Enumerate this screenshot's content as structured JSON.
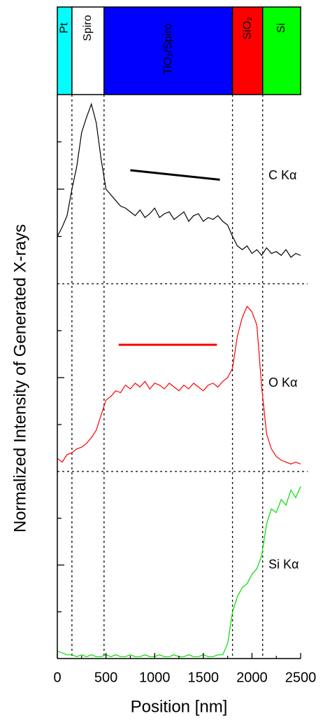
{
  "figure": {
    "ylabel": "Normalized Intensity of Generated X-rays",
    "layers": [
      {
        "label": "Pt",
        "start": 0,
        "end": 150,
        "color": "#00ffff"
      },
      {
        "label": "Spiro",
        "start": 150,
        "end": 480,
        "color": "#ffffff"
      },
      {
        "label": "TiO₂/Spiro",
        "start": 480,
        "end": 1800,
        "color": "#0000ff"
      },
      {
        "label": "SiO₂",
        "start": 1800,
        "end": 2110,
        "color": "#ff0000"
      },
      {
        "label": "Si",
        "start": 2110,
        "end": 2500,
        "color": "#00ff00"
      }
    ]
  },
  "chart_data": [
    {
      "type": "line",
      "xlim": [
        0,
        2500
      ],
      "ylim": [
        0,
        1
      ],
      "yticks": [
        0.25,
        0.5,
        0.75
      ],
      "x": [
        0,
        50,
        100,
        150,
        200,
        250,
        300,
        350,
        400,
        450,
        500,
        550,
        600,
        650,
        700,
        750,
        800,
        850,
        900,
        950,
        1000,
        1050,
        1100,
        1150,
        1200,
        1250,
        1300,
        1350,
        1400,
        1450,
        1500,
        1550,
        1600,
        1650,
        1700,
        1750,
        1800,
        1850,
        1900,
        1950,
        2000,
        2050,
        2100,
        2150,
        2200,
        2250,
        2300,
        2350,
        2400,
        2450,
        2500
      ],
      "series": [
        {
          "name": "C Kα",
          "color": "#000000",
          "values": [
            0.25,
            0.3,
            0.36,
            0.5,
            0.62,
            0.8,
            0.88,
            0.95,
            0.85,
            0.66,
            0.5,
            0.47,
            0.44,
            0.41,
            0.4,
            0.38,
            0.36,
            0.39,
            0.35,
            0.37,
            0.4,
            0.35,
            0.37,
            0.38,
            0.34,
            0.36,
            0.38,
            0.33,
            0.36,
            0.37,
            0.33,
            0.35,
            0.34,
            0.36,
            0.33,
            0.31,
            0.25,
            0.2,
            0.18,
            0.2,
            0.16,
            0.18,
            0.15,
            0.19,
            0.16,
            0.17,
            0.15,
            0.18,
            0.14,
            0.16,
            0.15
          ]
        }
      ],
      "guide": {
        "x": [
          750,
          1670
        ],
        "values": [
          0.6,
          0.55
        ],
        "color": "#000000"
      }
    },
    {
      "type": "line",
      "xlim": [
        0,
        2500
      ],
      "ylim": [
        0,
        1
      ],
      "yticks": [
        0.25,
        0.5,
        0.75
      ],
      "x": [
        0,
        50,
        100,
        150,
        200,
        250,
        300,
        350,
        400,
        450,
        500,
        550,
        600,
        650,
        700,
        750,
        800,
        850,
        900,
        950,
        1000,
        1050,
        1100,
        1150,
        1200,
        1250,
        1300,
        1350,
        1400,
        1450,
        1500,
        1550,
        1600,
        1650,
        1700,
        1750,
        1800,
        1850,
        1900,
        1950,
        2000,
        2050,
        2100,
        2150,
        2200,
        2250,
        2300,
        2350,
        2400,
        2450,
        2500
      ],
      "series": [
        {
          "name": "O Kα",
          "color": "#ff0000",
          "values": [
            0.07,
            0.05,
            0.09,
            0.1,
            0.12,
            0.13,
            0.15,
            0.18,
            0.22,
            0.3,
            0.38,
            0.4,
            0.43,
            0.42,
            0.46,
            0.44,
            0.47,
            0.45,
            0.48,
            0.44,
            0.47,
            0.46,
            0.44,
            0.47,
            0.45,
            0.43,
            0.46,
            0.44,
            0.47,
            0.45,
            0.43,
            0.46,
            0.47,
            0.45,
            0.48,
            0.5,
            0.55,
            0.72,
            0.82,
            0.88,
            0.85,
            0.78,
            0.45,
            0.2,
            0.12,
            0.08,
            0.06,
            0.05,
            0.04,
            0.05,
            0.04
          ]
        }
      ],
      "guide": {
        "x": [
          630,
          1640
        ],
        "values": [
          0.675,
          0.675
        ],
        "color": "#ff0000"
      }
    },
    {
      "type": "line",
      "xlim": [
        0,
        2500
      ],
      "ylim": [
        0,
        1
      ],
      "yticks": [
        0.25,
        0.5,
        0.75
      ],
      "xticks": [
        0,
        500,
        1000,
        1500,
        2000,
        2500
      ],
      "xlabel": "Position [nm]",
      "x": [
        0,
        50,
        100,
        150,
        200,
        250,
        300,
        350,
        400,
        450,
        500,
        550,
        600,
        650,
        700,
        750,
        800,
        850,
        900,
        950,
        1000,
        1050,
        1100,
        1150,
        1200,
        1250,
        1300,
        1350,
        1400,
        1450,
        1500,
        1550,
        1600,
        1650,
        1700,
        1750,
        1800,
        1850,
        1900,
        1950,
        2000,
        2050,
        2100,
        2150,
        2200,
        2250,
        2300,
        2350,
        2400,
        2450,
        2500
      ],
      "series": [
        {
          "name": "Si Kα",
          "color": "#00dd00",
          "values": [
            0.04,
            0.03,
            0.02,
            0.02,
            0.01,
            0.02,
            0.01,
            0.02,
            0.01,
            0.01,
            0.02,
            0.01,
            0.02,
            0.01,
            0.01,
            0.02,
            0.01,
            0.01,
            0.02,
            0.01,
            0.01,
            0.02,
            0.01,
            0.01,
            0.02,
            0.01,
            0.01,
            0.02,
            0.01,
            0.01,
            0.02,
            0.01,
            0.01,
            0.02,
            0.02,
            0.08,
            0.25,
            0.33,
            0.38,
            0.4,
            0.45,
            0.48,
            0.55,
            0.72,
            0.8,
            0.78,
            0.85,
            0.82,
            0.9,
            0.86,
            0.92
          ]
        }
      ]
    }
  ]
}
